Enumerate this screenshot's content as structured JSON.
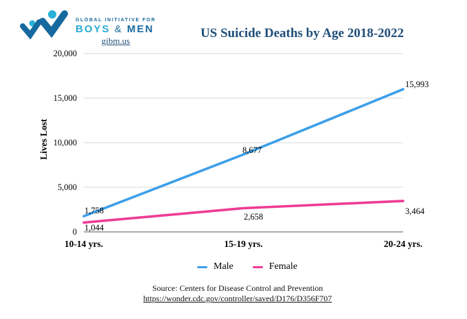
{
  "logo": {
    "org_line1": "GLOBAL INITIATIVE FOR",
    "org_boys": "BOYS",
    "org_amp": "&",
    "org_men": "MEN",
    "url": "gibm.us",
    "colors": {
      "dark_blue": "#16699f",
      "light_blue": "#29b1d8"
    }
  },
  "title": "US Suicide Deaths by Age 2018-2022",
  "chart_data": {
    "type": "line",
    "title": "US Suicide Deaths by Age 2018-2022",
    "categories": [
      "10-14 yrs.",
      "15-19 yrs.",
      "20-24 yrs."
    ],
    "series": [
      {
        "name": "Male",
        "color": "#3d9fe8",
        "values": [
          1758,
          8677,
          15993
        ],
        "labels": [
          "1,758",
          "8,677",
          "15,993"
        ]
      },
      {
        "name": "Female",
        "color": "#ee3c95",
        "values": [
          1044,
          2658,
          3464
        ],
        "labels": [
          "1,044",
          "2,658",
          "3,464"
        ]
      }
    ],
    "xlabel": "",
    "ylabel": "Lives Lost",
    "ylim": [
      0,
      20000
    ],
    "yticks": [
      {
        "value": 0,
        "label": "0"
      },
      {
        "value": 5000,
        "label": "5,000"
      },
      {
        "value": 10000,
        "label": "10,000"
      },
      {
        "value": 15000,
        "label": "15,000"
      },
      {
        "value": 20000,
        "label": "20,000"
      }
    ],
    "grid": "horizontal",
    "legend_position": "bottom"
  },
  "footer": {
    "source": "Source: Centers for Disease Control and Prevention",
    "link": "https://wonder.cdc.gov/controller/saved/D176/D356F707"
  }
}
